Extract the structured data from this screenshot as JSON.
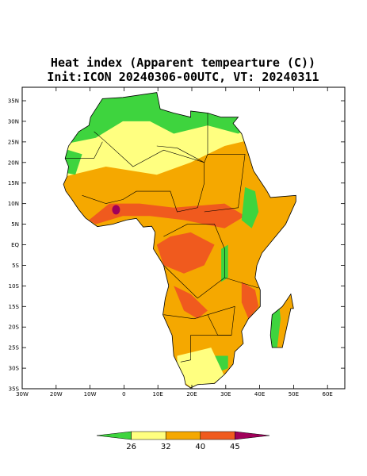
{
  "title": "Heat index (Apparent tempearture (C))",
  "subtitle": "Init:ICON 20240306-00UTC, VT: 20240311",
  "latitude_labels": [
    "35N",
    "30N",
    "25N",
    "20N",
    "15N",
    "10N",
    "5N",
    "EQ",
    "5S",
    "10S",
    "15S",
    "20S",
    "25S",
    "30S",
    "35S"
  ],
  "longitude_labels": [
    "30W",
    "20W",
    "10W",
    "0",
    "10E",
    "20E",
    "30E",
    "40E",
    "50E",
    "60E"
  ],
  "colorbar": {
    "labels": [
      26,
      32,
      40,
      45
    ],
    "colors": [
      "#3ed43e",
      "#ffff80",
      "#f5a800",
      "#f05a1e",
      "#a0005a"
    ]
  }
}
